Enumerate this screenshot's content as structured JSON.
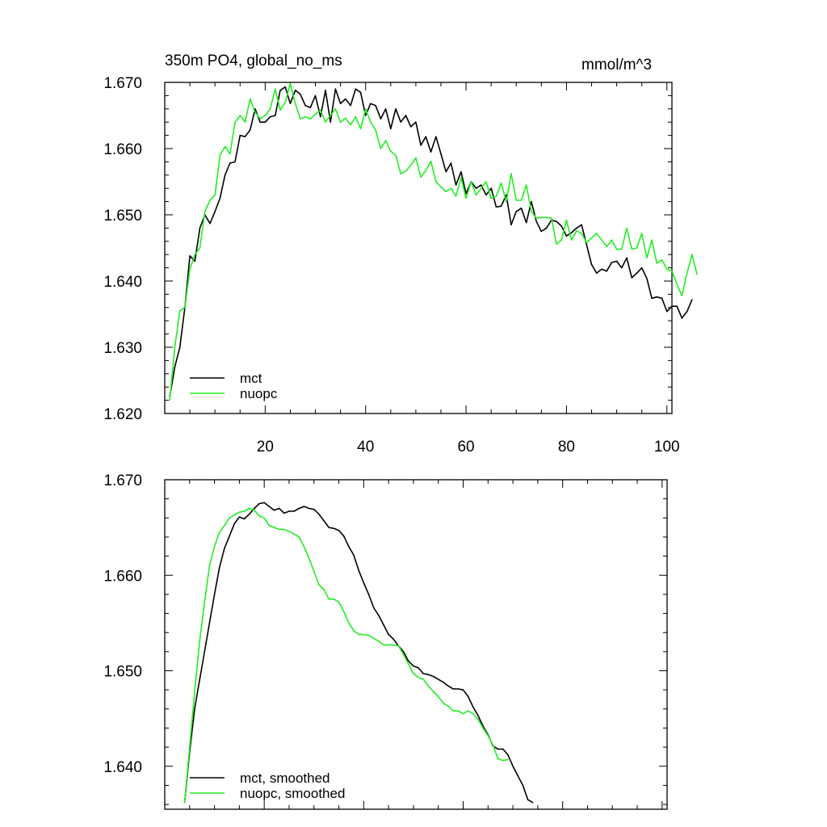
{
  "header": {
    "title": "350m PO4, global_no_ms",
    "units": "mmol/m^3"
  },
  "colors": {
    "mct": "#000000",
    "nuopc": "#22ee22",
    "axis": "#000000",
    "background": "#ffffff"
  },
  "chart_data": [
    {
      "type": "line",
      "title": "350m PO4, global_no_ms",
      "units": "mmol/m^3",
      "xlabel": "",
      "ylabel": "",
      "xlim": [
        0,
        101
      ],
      "ylim": [
        1.62,
        1.67
      ],
      "xticks": [
        20,
        40,
        60,
        80,
        100
      ],
      "xtick_labels": [
        "20",
        "40",
        "60",
        "80",
        "100"
      ],
      "yticks": [
        1.62,
        1.63,
        1.64,
        1.65,
        1.66,
        1.67
      ],
      "ytick_labels": [
        "1.620",
        "1.630",
        "1.640",
        "1.650",
        "1.660",
        "1.670"
      ],
      "legend_position": "bottom-left",
      "x_start": 1,
      "series": [
        {
          "name": "mct",
          "color": "#000000",
          "values": [
            1.6225,
            1.627,
            1.63,
            1.636,
            1.6438,
            1.643,
            1.648,
            1.65,
            1.6487,
            1.6505,
            1.6525,
            1.656,
            1.6578,
            1.658,
            1.662,
            1.6618,
            1.6628,
            1.666,
            1.664,
            1.664,
            1.6648,
            1.665,
            1.6688,
            1.6693,
            1.6668,
            1.6688,
            1.6682,
            1.6665,
            1.6662,
            1.668,
            1.6648,
            1.6688,
            1.664,
            1.669,
            1.6668,
            1.6675,
            1.6665,
            1.669,
            1.6685,
            1.665,
            1.6668,
            1.6665,
            1.6645,
            1.666,
            1.663,
            1.666,
            1.664,
            1.665,
            1.6633,
            1.664,
            1.6605,
            1.6618,
            1.6595,
            1.6618,
            1.6592,
            1.6565,
            1.6578,
            1.6545,
            1.6565,
            1.6532,
            1.655,
            1.654,
            1.6545,
            1.653,
            1.654,
            1.6512,
            1.6513,
            1.653,
            1.6485,
            1.6505,
            1.651,
            1.6488,
            1.652,
            1.649,
            1.6475,
            1.648,
            1.6492,
            1.649,
            1.6483,
            1.6468,
            1.6473,
            1.648,
            1.6485,
            1.6455,
            1.6425,
            1.6412,
            1.6418,
            1.6415,
            1.6428,
            1.643,
            1.642,
            1.6435,
            1.6405,
            1.6412,
            1.642,
            1.6404,
            1.6374,
            1.6376,
            1.6374,
            1.6354,
            1.6362,
            1.6362,
            1.6344,
            1.6354,
            1.6372
          ]
        },
        {
          "name": "nuopc",
          "color": "#22ee22",
          "values": [
            1.622,
            1.63,
            1.6355,
            1.636,
            1.6418,
            1.644,
            1.645,
            1.6505,
            1.6522,
            1.653,
            1.659,
            1.6603,
            1.6592,
            1.664,
            1.665,
            1.664,
            1.6675,
            1.6655,
            1.6645,
            1.665,
            1.666,
            1.669,
            1.6658,
            1.667,
            1.6698,
            1.6668,
            1.6645,
            1.6648,
            1.6645,
            1.6652,
            1.6658,
            1.664,
            1.665,
            1.666,
            1.664,
            1.6646,
            1.6636,
            1.6648,
            1.663,
            1.666,
            1.664,
            1.6628,
            1.66,
            1.6612,
            1.6596,
            1.659,
            1.6562,
            1.6566,
            1.6575,
            1.6586,
            1.6557,
            1.6567,
            1.6581,
            1.655,
            1.6542,
            1.6535,
            1.654,
            1.6528,
            1.6556,
            1.6525,
            1.655,
            1.653,
            1.654,
            1.655,
            1.6525,
            1.6528,
            1.6548,
            1.652,
            1.6562,
            1.6522,
            1.6522,
            1.6545,
            1.6505,
            1.6495,
            1.6496,
            1.6496,
            1.6495,
            1.6456,
            1.6462,
            1.6492,
            1.6462,
            1.6476,
            1.6472,
            1.6458,
            1.6465,
            1.6472,
            1.6462,
            1.6452,
            1.6462,
            1.6448,
            1.6448,
            1.648,
            1.6448,
            1.645,
            1.6472,
            1.6435,
            1.6462,
            1.6427,
            1.6432,
            1.6418,
            1.6415,
            1.6395,
            1.6378,
            1.6412,
            1.644,
            1.641
          ]
        }
      ]
    },
    {
      "type": "line",
      "title": "",
      "xlabel": "",
      "ylabel": "",
      "xlim": [
        0,
        101
      ],
      "ylim": [
        1.6355,
        1.67
      ],
      "xticks": [
        20,
        40,
        60,
        80,
        100
      ],
      "xtick_labels": [],
      "yticks": [
        1.64,
        1.65,
        1.66,
        1.67
      ],
      "ytick_labels": [
        "1.640",
        "1.650",
        "1.660",
        "1.670"
      ],
      "legend_position": "bottom-left",
      "x_start": 4,
      "series": [
        {
          "name": "mct, smoothed",
          "color": "#000000",
          "values": [
            1.6362,
            1.6415,
            1.646,
            1.649,
            1.652,
            1.655,
            1.658,
            1.6608,
            1.6628,
            1.6641,
            1.6654,
            1.6661,
            1.6659,
            1.6664,
            1.667,
            1.6675,
            1.6676,
            1.6672,
            1.6668,
            1.667,
            1.6665,
            1.6667,
            1.6667,
            1.667,
            1.6672,
            1.667,
            1.6669,
            1.6664,
            1.6657,
            1.665,
            1.6649,
            1.6647,
            1.6641,
            1.663,
            1.6621,
            1.6605,
            1.6592,
            1.658,
            1.6566,
            1.6558,
            1.6548,
            1.6538,
            1.6533,
            1.6526,
            1.652,
            1.651,
            1.6505,
            1.6503,
            1.6497,
            1.6496,
            1.6494,
            1.6491,
            1.6488,
            1.6484,
            1.6481,
            1.6481,
            1.648,
            1.6473,
            1.6462,
            1.6453,
            1.6442,
            1.6433,
            1.6421,
            1.6418,
            1.6418,
            1.6412,
            1.64,
            1.639,
            1.638,
            1.6365,
            1.6362
          ]
        },
        {
          "name": "nuopc, smoothed",
          "color": "#22ee22",
          "values": [
            1.6362,
            1.642,
            1.6478,
            1.653,
            1.6572,
            1.661,
            1.663,
            1.6645,
            1.6652,
            1.666,
            1.6663,
            1.6666,
            1.6667,
            1.667,
            1.6668,
            1.6662,
            1.666,
            1.6652,
            1.665,
            1.6648,
            1.6648,
            1.6646,
            1.6643,
            1.664,
            1.663,
            1.6618,
            1.6604,
            1.659,
            1.6585,
            1.6575,
            1.6575,
            1.6572,
            1.6562,
            1.655,
            1.6542,
            1.6538,
            1.6538,
            1.6537,
            1.6534,
            1.6531,
            1.6527,
            1.6527,
            1.6527,
            1.6526,
            1.6517,
            1.6507,
            1.6497,
            1.6493,
            1.6491,
            1.6484,
            1.6478,
            1.6473,
            1.6466,
            1.6463,
            1.6458,
            1.6458,
            1.6455,
            1.6458,
            1.6455,
            1.6449,
            1.644,
            1.6432,
            1.6422,
            1.6408,
            1.6406,
            1.6407
          ]
        }
      ]
    }
  ]
}
